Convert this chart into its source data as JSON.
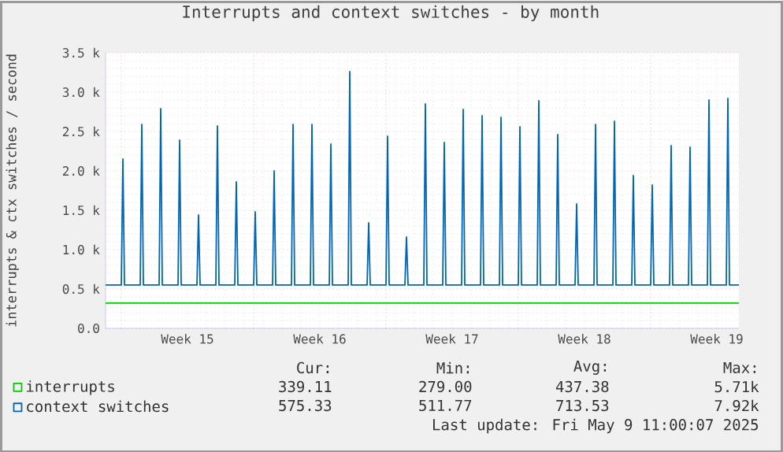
{
  "chart_data": {
    "type": "line",
    "title": "Interrupts and context switches - by month",
    "ylabel": "interrupts & ctx switches / second",
    "x": [
      "2025-04-06T04:00",
      "2025-04-07T00:00",
      "2025-04-07T02:00",
      "2025-04-07T04:00",
      "2025-04-08T00:00",
      "2025-04-08T02:00",
      "2025-04-08T04:00",
      "2025-04-09T00:00",
      "2025-04-09T02:00",
      "2025-04-09T04:00",
      "2025-04-10T00:00",
      "2025-04-10T02:00",
      "2025-04-10T04:00",
      "2025-04-11T00:00",
      "2025-04-11T02:00",
      "2025-04-11T04:00",
      "2025-04-12T00:00",
      "2025-04-12T02:00",
      "2025-04-12T04:00",
      "2025-04-13T00:00",
      "2025-04-13T02:00",
      "2025-04-13T04:00",
      "2025-04-14T00:00",
      "2025-04-14T02:00",
      "2025-04-14T04:00",
      "2025-04-15T00:00",
      "2025-04-15T02:00",
      "2025-04-15T04:00",
      "2025-04-16T00:00",
      "2025-04-16T02:00",
      "2025-04-16T04:00",
      "2025-04-17T00:00",
      "2025-04-17T02:00",
      "2025-04-17T04:00",
      "2025-04-18T00:00",
      "2025-04-18T02:00",
      "2025-04-18T04:00",
      "2025-04-19T00:00",
      "2025-04-19T02:00",
      "2025-04-19T04:00",
      "2025-04-20T00:00",
      "2025-04-20T02:00",
      "2025-04-20T04:00",
      "2025-04-21T00:00",
      "2025-04-21T02:00",
      "2025-04-21T04:00",
      "2025-04-22T00:00",
      "2025-04-22T02:00",
      "2025-04-22T04:00",
      "2025-04-23T00:00",
      "2025-04-23T02:00",
      "2025-04-23T04:00",
      "2025-04-24T00:00",
      "2025-04-24T02:00",
      "2025-04-24T04:00",
      "2025-04-25T00:00",
      "2025-04-25T02:00",
      "2025-04-25T04:00",
      "2025-04-26T00:00",
      "2025-04-26T02:00",
      "2025-04-26T04:00",
      "2025-04-27T00:00",
      "2025-04-27T02:00",
      "2025-04-27T04:00",
      "2025-04-28T00:00",
      "2025-04-28T02:00",
      "2025-04-28T04:00",
      "2025-04-29T00:00",
      "2025-04-29T02:00",
      "2025-04-29T04:00",
      "2025-04-30T00:00",
      "2025-04-30T02:00",
      "2025-04-30T04:00",
      "2025-05-01T00:00",
      "2025-05-01T02:00",
      "2025-05-01T04:00",
      "2025-05-02T00:00",
      "2025-05-02T02:00",
      "2025-05-02T04:00",
      "2025-05-03T00:00",
      "2025-05-03T02:00",
      "2025-05-03T04:00",
      "2025-05-04T00:00",
      "2025-05-04T02:00",
      "2025-05-04T04:00",
      "2025-05-05T00:00",
      "2025-05-05T02:00",
      "2025-05-05T04:00",
      "2025-05-06T00:00",
      "2025-05-06T02:00",
      "2025-05-06T04:00",
      "2025-05-07T00:00",
      "2025-05-07T02:00",
      "2025-05-07T04:00",
      "2025-05-08T00:00",
      "2025-05-08T02:00",
      "2025-05-08T04:00",
      "2025-05-09T00:00",
      "2025-05-09T02:00",
      "2025-05-09T04:00",
      "2025-05-09T16:00"
    ],
    "series": [
      {
        "name": "interrupts",
        "color": "#00cc00",
        "values": [
          320,
          320,
          null,
          320,
          320,
          null,
          320,
          320,
          null,
          320,
          320,
          null,
          320,
          320,
          null,
          320,
          320,
          null,
          320,
          320,
          null,
          320,
          320,
          null,
          320,
          320,
          null,
          320,
          320,
          null,
          320,
          320,
          null,
          320,
          320,
          null,
          320,
          320,
          null,
          320,
          320,
          null,
          320,
          320,
          null,
          320,
          320,
          null,
          320,
          320,
          null,
          320,
          320,
          null,
          320,
          320,
          null,
          320,
          320,
          null,
          320,
          320,
          null,
          320,
          320,
          null,
          320,
          320,
          null,
          320,
          320,
          null,
          320,
          320,
          null,
          320,
          320,
          null,
          320,
          320,
          null,
          320,
          320,
          null,
          320,
          320,
          null,
          320,
          320,
          null,
          320,
          320,
          null,
          320,
          320,
          null,
          320,
          320,
          null,
          320,
          320
        ]
      },
      {
        "name": "context switches",
        "color": "#0066b3",
        "values": [
          550,
          550,
          2150,
          550,
          550,
          2590,
          550,
          550,
          2790,
          550,
          550,
          2390,
          550,
          550,
          1440,
          550,
          550,
          2570,
          550,
          550,
          1860,
          550,
          550,
          1480,
          550,
          550,
          2000,
          550,
          550,
          2590,
          550,
          550,
          2590,
          550,
          550,
          2340,
          550,
          550,
          3260,
          550,
          550,
          1340,
          550,
          550,
          2440,
          550,
          550,
          1160,
          550,
          550,
          2850,
          550,
          550,
          2360,
          550,
          550,
          2780,
          550,
          550,
          2700,
          550,
          550,
          2680,
          550,
          550,
          2560,
          550,
          550,
          2890,
          550,
          550,
          2460,
          550,
          550,
          1580,
          550,
          550,
          2590,
          550,
          550,
          2630,
          550,
          550,
          1940,
          550,
          550,
          1820,
          550,
          550,
          2320,
          550,
          550,
          2300,
          550,
          550,
          2900,
          550,
          550,
          2920,
          550,
          550
        ]
      }
    ],
    "xlim": [
      "2025-04-06T04:00",
      "2025-05-09T16:00"
    ],
    "xticks": [
      {
        "value": "2025-04-10T12:00",
        "label": "Week 15"
      },
      {
        "value": "2025-04-17T12:00",
        "label": "Week 16"
      },
      {
        "value": "2025-04-24T12:00",
        "label": "Week 17"
      },
      {
        "value": "2025-05-01T12:00",
        "label": "Week 18"
      },
      {
        "value": "2025-05-08T12:00",
        "label": "Week 19"
      }
    ],
    "ylim": [
      0,
      3500
    ],
    "yticks": [
      {
        "value": 0,
        "label": "0.0"
      },
      {
        "value": 500,
        "label": "0.5 k"
      },
      {
        "value": 1000,
        "label": "1.0 k"
      },
      {
        "value": 1500,
        "label": "1.5 k"
      },
      {
        "value": 2000,
        "label": "2.0 k"
      },
      {
        "value": 2500,
        "label": "2.5 k"
      },
      {
        "value": 3000,
        "label": "3.0 k"
      },
      {
        "value": 3500,
        "label": "3.5 k"
      }
    ],
    "ref_lines": [
      {
        "axis": "x",
        "value": "2025-04-07T00:00",
        "color": "#f08080",
        "line_style": "dotted"
      },
      {
        "axis": "x",
        "value": "2025-04-14T00:00",
        "color": "#f08080",
        "line_style": "dotted"
      },
      {
        "axis": "x",
        "value": "2025-04-21T00:00",
        "color": "#f08080",
        "line_style": "dotted"
      },
      {
        "axis": "x",
        "value": "2025-04-28T00:00",
        "color": "#f08080",
        "line_style": "dotted"
      },
      {
        "axis": "x",
        "value": "2025-05-05T00:00",
        "color": "#f08080",
        "line_style": "dotted"
      }
    ],
    "grid": true,
    "legend": "bottom",
    "annotations": [
      "Cur:",
      "Min:",
      "Avg:",
      "Max:",
      "339.11",
      "279.00",
      "437.38",
      "5.71k",
      "575.33",
      "511.77",
      "713.53",
      "7.92k",
      "Last update: Fri May  9 11:00:07 2025"
    ]
  }
}
